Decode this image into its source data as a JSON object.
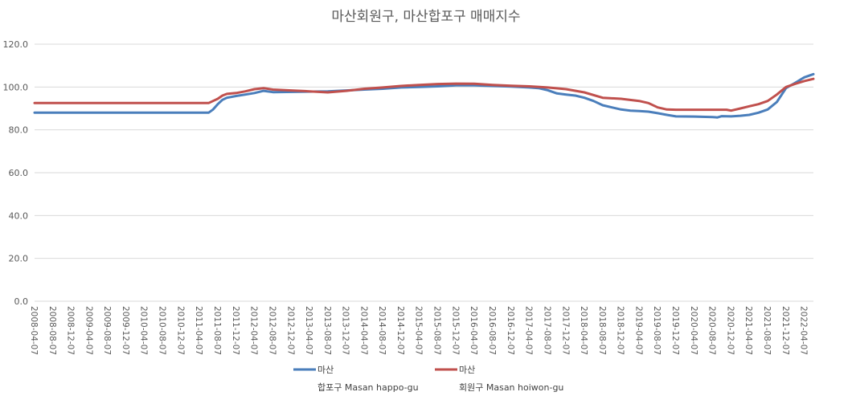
{
  "chart_data": {
    "type": "line",
    "title": "마산회원구, 마산합포구 매매지수",
    "xlabel": "",
    "ylabel": "",
    "ylim": [
      0,
      120
    ],
    "yticks": [
      "120.0",
      "100.0",
      "80.0",
      "60.0",
      "40.0",
      "20.0",
      "0.0"
    ],
    "grid": true,
    "legend_position": "bottom",
    "x_start": "2008-04-07",
    "x_end": "2022-06-07",
    "x_tick_labels": [
      "2008-04-07",
      "2008-08-07",
      "2008-12-07",
      "2009-04-07",
      "2009-08-07",
      "2009-12-07",
      "2010-04-07",
      "2010-08-07",
      "2010-12-07",
      "2011-04-07",
      "2011-08-07",
      "2011-12-07",
      "2012-04-07",
      "2012-08-07",
      "2012-12-07",
      "2013-04-07",
      "2013-08-07",
      "2013-12-07",
      "2014-04-07",
      "2014-08-07",
      "2014-12-07",
      "2015-04-07",
      "2015-08-07",
      "2015-12-07",
      "2016-04-07",
      "2016-08-07",
      "2016-12-07",
      "2017-04-07",
      "2017-08-07",
      "2017-12-07",
      "2018-04-07",
      "2018-08-07",
      "2018-12-07",
      "2019-04-07",
      "2019-08-07",
      "2019-12-07",
      "2020-04-07",
      "2020-08-07",
      "2020-12-07",
      "2021-04-07",
      "2021-08-07",
      "2021-12-07",
      "2022-04-07"
    ],
    "series": [
      {
        "name": "마산",
        "legend_sub": "합포구 Masan happo-gu",
        "color": "#4a7ebb",
        "points": [
          [
            "2008-04-07",
            88.0
          ],
          [
            "2011-06-07",
            88.0
          ],
          [
            "2011-07-07",
            89.5
          ],
          [
            "2011-08-07",
            92.0
          ],
          [
            "2011-09-07",
            94.0
          ],
          [
            "2011-10-07",
            95.0
          ],
          [
            "2011-12-07",
            95.8
          ],
          [
            "2012-02-07",
            96.5
          ],
          [
            "2012-04-07",
            97.2
          ],
          [
            "2012-06-07",
            98.2
          ],
          [
            "2012-08-07",
            97.6
          ],
          [
            "2013-02-07",
            97.8
          ],
          [
            "2013-08-07",
            98.0
          ],
          [
            "2013-12-07",
            98.4
          ],
          [
            "2014-04-07",
            98.8
          ],
          [
            "2014-08-07",
            99.2
          ],
          [
            "2014-12-07",
            99.8
          ],
          [
            "2015-04-07",
            100.0
          ],
          [
            "2015-08-07",
            100.3
          ],
          [
            "2015-12-07",
            100.8
          ],
          [
            "2016-04-07",
            100.8
          ],
          [
            "2016-08-07",
            100.5
          ],
          [
            "2016-12-07",
            100.2
          ],
          [
            "2017-04-07",
            99.8
          ],
          [
            "2017-06-07",
            99.5
          ],
          [
            "2017-08-07",
            98.5
          ],
          [
            "2017-10-07",
            97.0
          ],
          [
            "2017-12-07",
            96.5
          ],
          [
            "2018-02-07",
            96.0
          ],
          [
            "2018-04-07",
            95.0
          ],
          [
            "2018-06-07",
            93.5
          ],
          [
            "2018-08-07",
            91.5
          ],
          [
            "2018-10-07",
            90.5
          ],
          [
            "2018-12-07",
            89.5
          ],
          [
            "2019-02-07",
            89.0
          ],
          [
            "2019-04-07",
            88.8
          ],
          [
            "2019-06-07",
            88.5
          ],
          [
            "2019-08-07",
            87.8
          ],
          [
            "2019-10-07",
            87.0
          ],
          [
            "2019-12-07",
            86.3
          ],
          [
            "2020-04-07",
            86.2
          ],
          [
            "2020-08-07",
            86.0
          ],
          [
            "2020-09-07",
            85.8
          ],
          [
            "2020-10-07",
            86.4
          ],
          [
            "2020-12-07",
            86.3
          ],
          [
            "2021-02-07",
            86.6
          ],
          [
            "2021-04-07",
            87.0
          ],
          [
            "2021-06-07",
            88.0
          ],
          [
            "2021-08-07",
            89.5
          ],
          [
            "2021-10-07",
            93.0
          ],
          [
            "2021-12-07",
            99.5
          ],
          [
            "2022-02-07",
            102.0
          ],
          [
            "2022-04-07",
            104.5
          ],
          [
            "2022-06-07",
            106.0
          ]
        ]
      },
      {
        "name": "마산",
        "legend_sub": "회원구 Masan hoiwon-gu",
        "color": "#c0504d",
        "points": [
          [
            "2008-04-07",
            92.5
          ],
          [
            "2011-06-07",
            92.5
          ],
          [
            "2011-07-07",
            93.5
          ],
          [
            "2011-08-07",
            94.5
          ],
          [
            "2011-09-07",
            96.0
          ],
          [
            "2011-10-07",
            96.8
          ],
          [
            "2011-12-07",
            97.2
          ],
          [
            "2012-02-07",
            98.0
          ],
          [
            "2012-04-07",
            99.0
          ],
          [
            "2012-06-07",
            99.5
          ],
          [
            "2012-08-07",
            98.8
          ],
          [
            "2012-12-07",
            98.4
          ],
          [
            "2013-04-07",
            98.0
          ],
          [
            "2013-08-07",
            97.5
          ],
          [
            "2013-12-07",
            98.2
          ],
          [
            "2014-04-07",
            99.2
          ],
          [
            "2014-08-07",
            99.8
          ],
          [
            "2014-12-07",
            100.5
          ],
          [
            "2015-04-07",
            101.0
          ],
          [
            "2015-08-07",
            101.4
          ],
          [
            "2015-12-07",
            101.6
          ],
          [
            "2016-04-07",
            101.5
          ],
          [
            "2016-08-07",
            101.0
          ],
          [
            "2016-12-07",
            100.6
          ],
          [
            "2017-04-07",
            100.3
          ],
          [
            "2017-08-07",
            99.8
          ],
          [
            "2017-12-07",
            99.0
          ],
          [
            "2018-04-07",
            97.5
          ],
          [
            "2018-08-07",
            95.0
          ],
          [
            "2018-12-07",
            94.5
          ],
          [
            "2019-04-07",
            93.5
          ],
          [
            "2019-06-07",
            92.5
          ],
          [
            "2019-08-07",
            90.5
          ],
          [
            "2019-10-07",
            89.5
          ],
          [
            "2019-12-07",
            89.4
          ],
          [
            "2020-04-07",
            89.4
          ],
          [
            "2020-08-07",
            89.4
          ],
          [
            "2020-11-07",
            89.4
          ],
          [
            "2020-12-07",
            89.0
          ],
          [
            "2021-02-07",
            90.0
          ],
          [
            "2021-04-07",
            91.0
          ],
          [
            "2021-06-07",
            92.0
          ],
          [
            "2021-08-07",
            93.5
          ],
          [
            "2021-10-07",
            96.5
          ],
          [
            "2021-12-07",
            100.0
          ],
          [
            "2022-02-07",
            101.5
          ],
          [
            "2022-04-07",
            102.8
          ],
          [
            "2022-06-07",
            103.8
          ]
        ]
      }
    ]
  }
}
